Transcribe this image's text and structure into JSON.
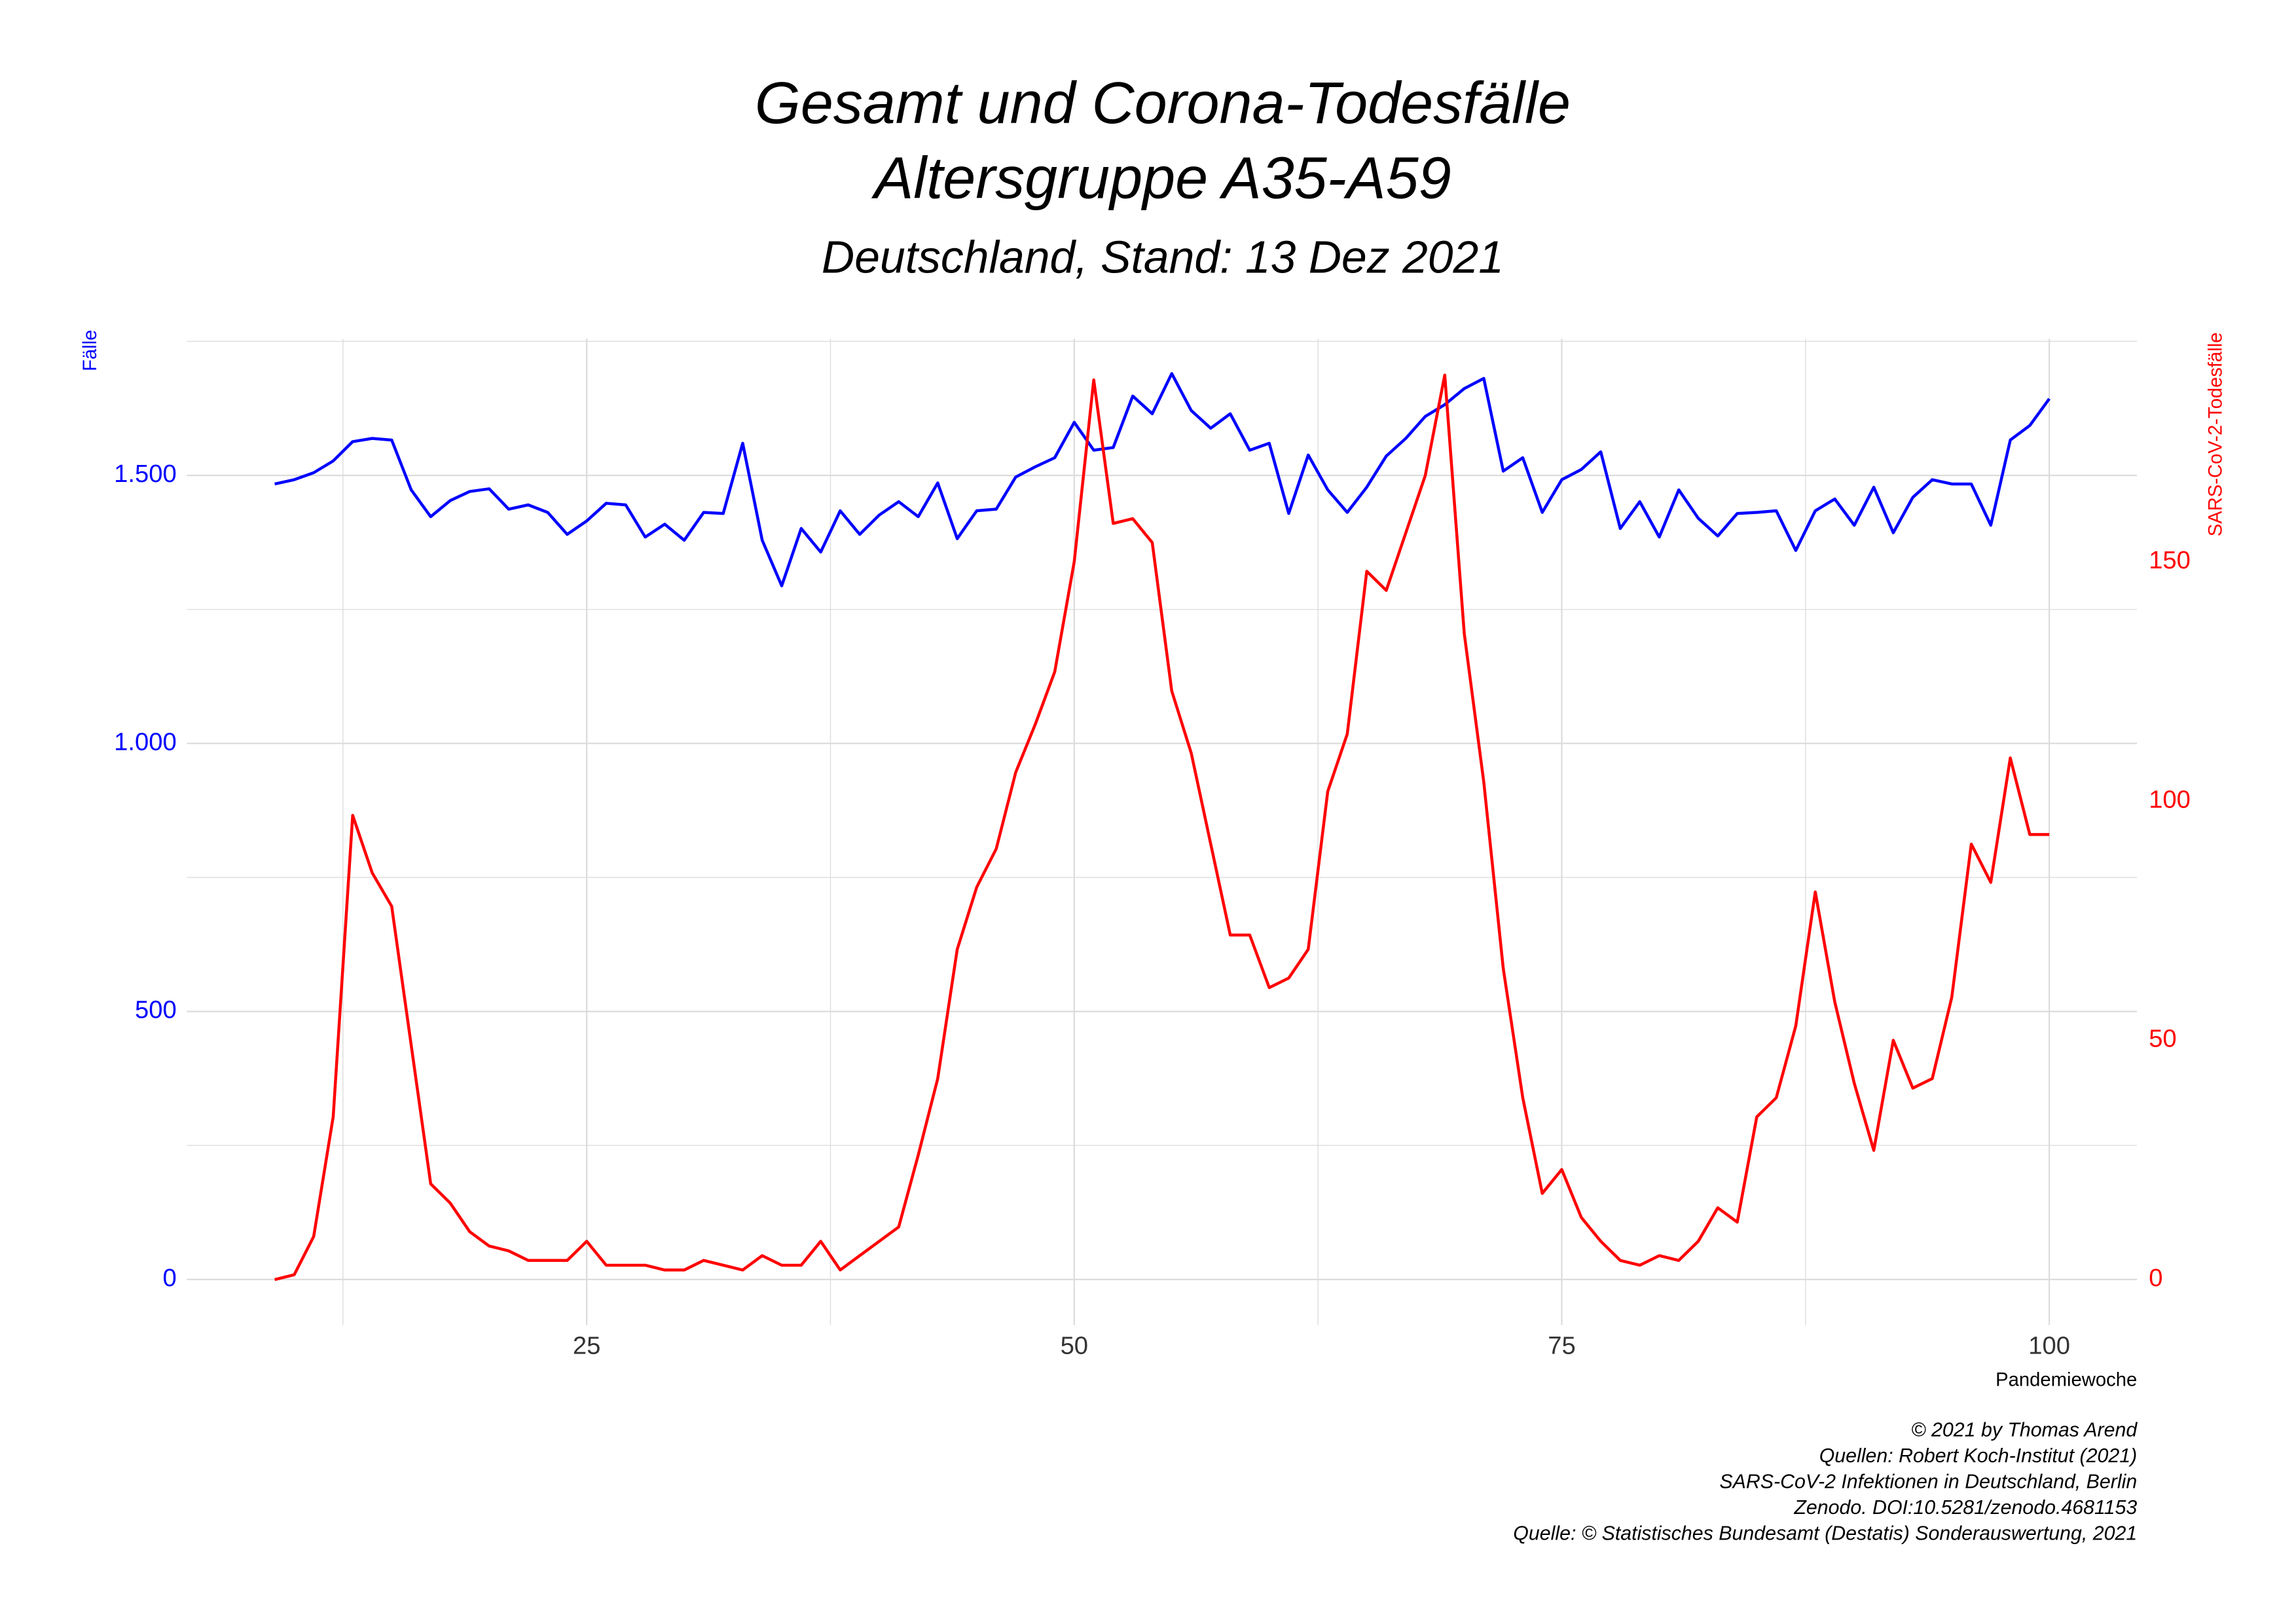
{
  "chart_data": {
    "type": "line",
    "title": [
      "Gesamt und Corona-Todesfälle",
      "Altersgruppe A35-A59"
    ],
    "subtitle": "Deutschland, Stand: 13 Dez 2021",
    "x_label": "Pandemiewoche",
    "y_label": "Fälle",
    "y2_label": "SARS-CoV-2-Todesfälle",
    "caption": [
      "© 2021 by Thomas Arend",
      "Quellen: Robert Koch-Institut (2021)",
      "SARS-CoV-2 Infektionen in Deutschland, Berlin",
      "Zenodo. DOI:10.5281/zenodo.4681153",
      "Quelle: © Statistisches Bundesamt (Destatis) Sonderauswertung, 2021"
    ],
    "grid": true,
    "xlim": [
      4.5,
      104.5
    ],
    "xticks": [
      25,
      50,
      75,
      100
    ],
    "ylim": [
      -85,
      1755
    ],
    "yticks": [
      0,
      500,
      {
        "value": 1000,
        "label": "1.000"
      },
      {
        "value": 1500,
        "label": "1.500"
      }
    ],
    "y_color": "#0000ff",
    "y2lim": [
      -9.5,
      196.6
    ],
    "y2ticks": [
      0,
      50,
      100,
      150
    ],
    "y2_color": "#ff0000",
    "x": [
      9,
      10,
      11,
      12,
      13,
      14,
      15,
      16,
      17,
      18,
      19,
      20,
      21,
      22,
      23,
      24,
      25,
      26,
      27,
      28,
      29,
      30,
      31,
      32,
      33,
      34,
      35,
      36,
      37,
      38,
      39,
      40,
      41,
      42,
      43,
      44,
      45,
      46,
      47,
      48,
      49,
      50,
      51,
      52,
      53,
      54,
      55,
      56,
      57,
      58,
      59,
      60,
      61,
      62,
      63,
      64,
      65,
      66,
      67,
      68,
      69,
      70,
      71,
      72,
      73,
      74,
      75,
      76,
      77,
      78,
      79,
      80,
      81,
      82,
      83,
      84,
      85,
      86,
      87,
      88,
      89,
      90,
      91,
      92,
      93,
      94,
      95,
      96,
      97,
      98,
      99,
      100
    ],
    "series": [
      {
        "name": "Fälle",
        "color": "#0000ff",
        "values": [
          1484,
          1492,
          1505,
          1527,
          1563,
          1569,
          1566,
          1473,
          1423,
          1453,
          1470,
          1475,
          1437,
          1445,
          1431,
          1390,
          1415,
          1448,
          1445,
          1385,
          1409,
          1379,
          1431,
          1429,
          1560,
          1379,
          1294,
          1401,
          1357,
          1434,
          1390,
          1426,
          1451,
          1423,
          1486,
          1382,
          1434,
          1437,
          1497,
          1516,
          1533,
          1599,
          1547,
          1552,
          1648,
          1615,
          1690,
          1621,
          1588,
          1615,
          1547,
          1560,
          1429,
          1538,
          1473,
          1431,
          1478,
          1536,
          1569,
          1610,
          1632,
          1662,
          1681,
          1508,
          1533,
          1431,
          1492,
          1511,
          1544,
          1401,
          1451,
          1385,
          1473,
          1420,
          1387,
          1429,
          1431,
          1434,
          1360,
          1434,
          1456,
          1407,
          1478,
          1393,
          1459,
          1492,
          1484,
          1484,
          1407,
          1566,
          1593,
          1643
        ]
      },
      {
        "name": "SARS-CoV-2-Todesfälle",
        "color": "#ff0000",
        "axis": "y2",
        "values": [
          0,
          1,
          9,
          34,
          97,
          85,
          78,
          49,
          20,
          16,
          10,
          7,
          6,
          4,
          4,
          4,
          8,
          3,
          3,
          3,
          2,
          2,
          4,
          3,
          2,
          5,
          3,
          3,
          8,
          2,
          5,
          8,
          11,
          26,
          42,
          69,
          82,
          90,
          106,
          116,
          127,
          150,
          188,
          158,
          159,
          154,
          123,
          110,
          91,
          72,
          72,
          61,
          63,
          69,
          102,
          114,
          148,
          144,
          156,
          168,
          189,
          135,
          104,
          65,
          38,
          18,
          23,
          13,
          8,
          4,
          3,
          5,
          4,
          8,
          15,
          12,
          34,
          38,
          53,
          81,
          58,
          41,
          27,
          50,
          40,
          42,
          59,
          91,
          83,
          109,
          93,
          93
        ]
      }
    ]
  }
}
